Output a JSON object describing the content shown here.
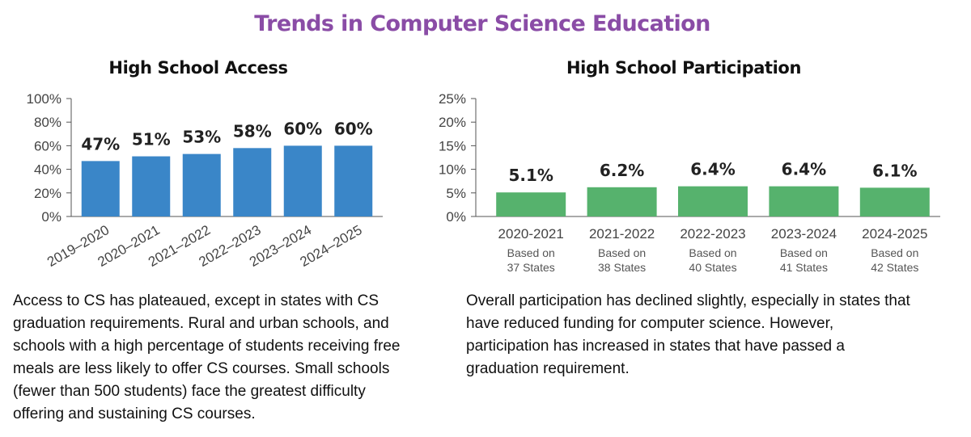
{
  "page": {
    "title": "Trends in Computer Science Education",
    "title_color": "#8a4ca6"
  },
  "charts": {
    "access": {
      "caption": "Access to CS has plateaued, except in states with CS graduation requirements. Rural and urban schools, and schools with a high percentage of students receiving free meals are less likely to offer CS courses. Small schools (fewer than 500 students) face the greatest difficulty offering and sustaining CS courses."
    },
    "participation": {
      "caption": "Overall participation has declined slightly, especially in states that have reduced funding for computer science. However, participation has increased in states that have passed a graduation requirement."
    }
  },
  "chart_data": [
    {
      "type": "bar",
      "title": "High School Access",
      "categories": [
        "2019–2020",
        "2020–2021",
        "2021–2022",
        "2022–2023",
        "2023–2024",
        "2024–2025"
      ],
      "values": [
        47,
        51,
        53,
        58,
        60,
        60
      ],
      "data_labels": [
        "47%",
        "51%",
        "53%",
        "58%",
        "60%",
        "60%"
      ],
      "ylim": [
        0,
        100
      ],
      "yticks": [
        "0%",
        "20%",
        "40%",
        "60%",
        "80%",
        "100%"
      ],
      "xlabel": "",
      "ylabel": "",
      "bar_color": "#3a86c8",
      "grid": false,
      "x_tick_rotation": "diagonal"
    },
    {
      "type": "bar",
      "title": "High School Participation",
      "categories": [
        "2020-2021",
        "2021-2022",
        "2022-2023",
        "2023-2024",
        "2024-2025"
      ],
      "category_notes": [
        [
          "Based on",
          "37 States"
        ],
        [
          "Based on",
          "38 States"
        ],
        [
          "Based on",
          "40 States"
        ],
        [
          "Based on",
          "41 States"
        ],
        [
          "Based on",
          "42 States"
        ]
      ],
      "values": [
        5.1,
        6.2,
        6.4,
        6.4,
        6.1
      ],
      "data_labels": [
        "5.1%",
        "6.2%",
        "6.4%",
        "6.4%",
        "6.1%"
      ],
      "ylim": [
        0,
        25
      ],
      "yticks": [
        "0%",
        "5%",
        "10%",
        "15%",
        "20%",
        "25%"
      ],
      "xlabel": "",
      "ylabel": "",
      "bar_color": "#56b26d",
      "grid": false
    }
  ]
}
